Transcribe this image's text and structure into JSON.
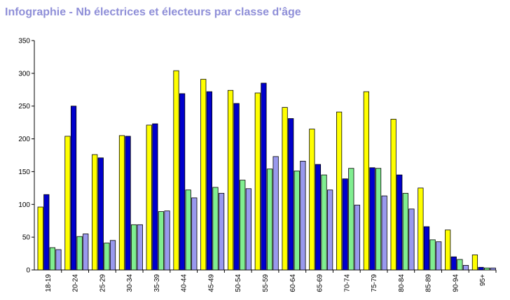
{
  "chart_data": {
    "type": "bar",
    "title": "Infographie - Nb électrices et électeurs par classe d'âge",
    "xlabel": "",
    "ylabel": "",
    "ylim": [
      0,
      350
    ],
    "yticks": [
      0,
      50,
      100,
      150,
      200,
      250,
      300,
      350
    ],
    "grid": false,
    "legend": "none",
    "categories": [
      "18-19",
      "20-24",
      "25-29",
      "30-34",
      "35-39",
      "40-44",
      "45-49",
      "50-54",
      "55-59",
      "60-64",
      "65-69",
      "70-74",
      "75-79",
      "80-84",
      "85-89",
      "90-94",
      "95+"
    ],
    "series": [
      {
        "color": "#ffff00",
        "values": [
          96,
          204,
          176,
          205,
          221,
          304,
          291,
          274,
          270,
          248,
          215,
          241,
          272,
          230,
          125,
          61,
          23
        ]
      },
      {
        "color": "#0000cc",
        "values": [
          115,
          250,
          171,
          204,
          223,
          269,
          272,
          254,
          285,
          231,
          161,
          139,
          156,
          145,
          66,
          20,
          4
        ]
      },
      {
        "color": "#80ee90",
        "values": [
          34,
          51,
          41,
          69,
          89,
          122,
          126,
          137,
          154,
          151,
          145,
          155,
          155,
          117,
          46,
          16,
          3
        ]
      },
      {
        "color": "#9999ee",
        "values": [
          31,
          55,
          45,
          69,
          90,
          110,
          117,
          124,
          173,
          166,
          122,
          99,
          113,
          93,
          43,
          7,
          3
        ]
      }
    ]
  }
}
